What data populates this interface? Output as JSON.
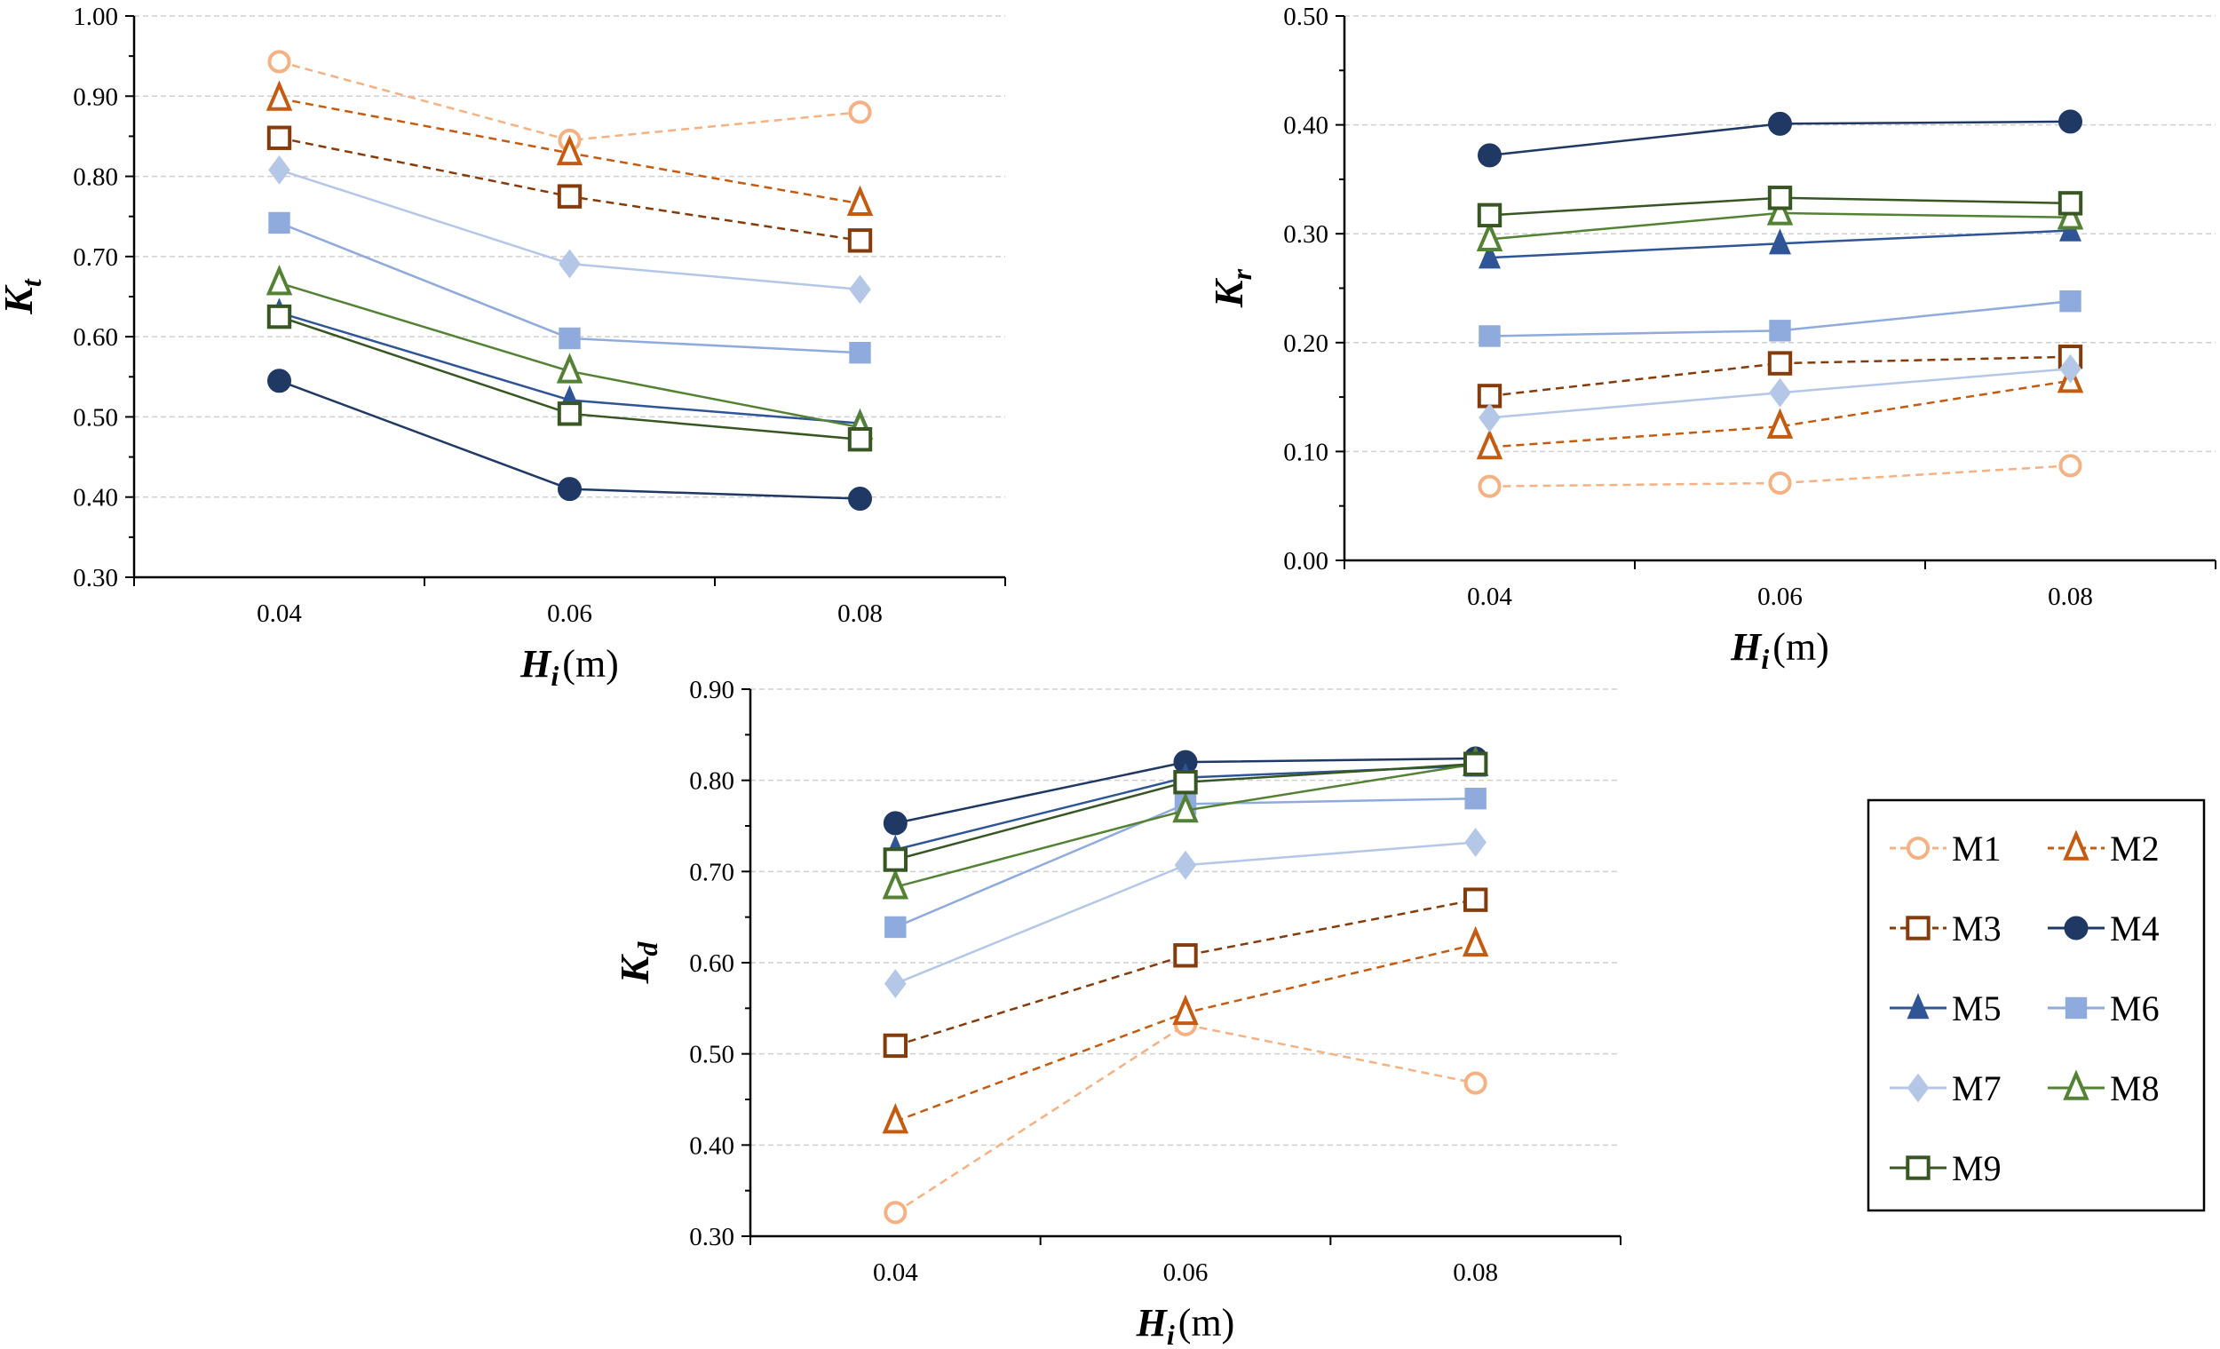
{
  "chart_data": [
    {
      "type": "line",
      "id": "kt",
      "ylabel": "K",
      "ylabel_sub": "t",
      "xlabel": "H",
      "xlabel_sub": "i",
      "xlabel_unit": "(m)",
      "categories": [
        "0.04",
        "0.06",
        "0.08"
      ],
      "ylim": [
        0.3,
        1.0
      ],
      "ymajor": 0.1,
      "yminor": 0.05,
      "yticks": [
        "0.30",
        "0.40",
        "0.50",
        "0.60",
        "0.70",
        "0.80",
        "0.90",
        "1.00"
      ],
      "grid": true,
      "series": [
        {
          "name": "M1",
          "values": [
            0.943,
            0.845,
            0.88
          ]
        },
        {
          "name": "M2",
          "values": [
            0.897,
            0.829,
            0.766
          ]
        },
        {
          "name": "M3",
          "values": [
            0.848,
            0.775,
            0.72
          ]
        },
        {
          "name": "M4",
          "values": [
            0.545,
            0.41,
            0.398
          ]
        },
        {
          "name": "M5",
          "values": [
            0.63,
            0.521,
            0.492
          ]
        },
        {
          "name": "M6",
          "values": [
            0.742,
            0.598,
            0.58
          ]
        },
        {
          "name": "M7",
          "values": [
            0.808,
            0.691,
            0.659
          ]
        },
        {
          "name": "M8",
          "values": [
            0.667,
            0.557,
            0.487
          ]
        },
        {
          "name": "M9",
          "values": [
            0.625,
            0.504,
            0.472
          ]
        }
      ]
    },
    {
      "type": "line",
      "id": "kr",
      "ylabel": "K",
      "ylabel_sub": "r",
      "xlabel": "H",
      "xlabel_sub": "i",
      "xlabel_unit": "(m)",
      "categories": [
        "0.04",
        "0.06",
        "0.08"
      ],
      "ylim": [
        0.0,
        0.5
      ],
      "ymajor": 0.1,
      "yminor": 0.05,
      "yticks": [
        "0.00",
        "0.10",
        "0.20",
        "0.30",
        "0.40",
        "0.50"
      ],
      "grid": true,
      "series": [
        {
          "name": "M1",
          "values": [
            0.068,
            0.071,
            0.087
          ]
        },
        {
          "name": "M2",
          "values": [
            0.104,
            0.123,
            0.165
          ]
        },
        {
          "name": "M3",
          "values": [
            0.151,
            0.181,
            0.187
          ]
        },
        {
          "name": "M4",
          "values": [
            0.372,
            0.401,
            0.403
          ]
        },
        {
          "name": "M5",
          "values": [
            0.278,
            0.291,
            0.303
          ]
        },
        {
          "name": "M6",
          "values": [
            0.206,
            0.211,
            0.238
          ]
        },
        {
          "name": "M7",
          "values": [
            0.131,
            0.154,
            0.176
          ]
        },
        {
          "name": "M8",
          "values": [
            0.295,
            0.319,
            0.315
          ]
        },
        {
          "name": "M9",
          "values": [
            0.317,
            0.333,
            0.328
          ]
        }
      ]
    },
    {
      "type": "line",
      "id": "kd",
      "ylabel": "K",
      "ylabel_sub": "d",
      "xlabel": "H",
      "xlabel_sub": "i",
      "xlabel_unit": "(m)",
      "categories": [
        "0.04",
        "0.06",
        "0.08"
      ],
      "ylim": [
        0.3,
        0.9
      ],
      "ymajor": 0.1,
      "yminor": 0.05,
      "yticks": [
        "0.30",
        "0.40",
        "0.50",
        "0.60",
        "0.70",
        "0.80",
        "0.90"
      ],
      "grid": true,
      "series": [
        {
          "name": "M1",
          "values": [
            0.326,
            0.532,
            0.468
          ]
        },
        {
          "name": "M2",
          "values": [
            0.426,
            0.545,
            0.62
          ]
        },
        {
          "name": "M3",
          "values": [
            0.509,
            0.608,
            0.669
          ]
        },
        {
          "name": "M4",
          "values": [
            0.753,
            0.82,
            0.824
          ]
        },
        {
          "name": "M5",
          "values": [
            0.724,
            0.803,
            0.816
          ]
        },
        {
          "name": "M6",
          "values": [
            0.639,
            0.774,
            0.78
          ]
        },
        {
          "name": "M7",
          "values": [
            0.577,
            0.707,
            0.732
          ]
        },
        {
          "name": "M8",
          "values": [
            0.683,
            0.767,
            0.818
          ]
        },
        {
          "name": "M9",
          "values": [
            0.713,
            0.798,
            0.818
          ]
        }
      ]
    }
  ],
  "legend": {
    "placement": "bottom-right",
    "items": [
      {
        "name": "M1",
        "color": "#f4b183",
        "marker": "circle-open",
        "dash": true
      },
      {
        "name": "M2",
        "color": "#c55a11",
        "marker": "triangle-open",
        "dash": true
      },
      {
        "name": "M3",
        "color": "#843c0c",
        "marker": "square-open",
        "dash": true
      },
      {
        "name": "M4",
        "color": "#1f3864",
        "marker": "circle-filled",
        "dash": false
      },
      {
        "name": "M5",
        "color": "#2f5597",
        "marker": "triangle-filled",
        "dash": false
      },
      {
        "name": "M6",
        "color": "#8faadc",
        "marker": "square-filled",
        "dash": false
      },
      {
        "name": "M7",
        "color": "#b4c7e7",
        "marker": "diamond-filled",
        "dash": false
      },
      {
        "name": "M8",
        "color": "#548235",
        "marker": "triangle-open",
        "dash": false
      },
      {
        "name": "M9",
        "color": "#375623",
        "marker": "square-open",
        "dash": false
      }
    ]
  }
}
